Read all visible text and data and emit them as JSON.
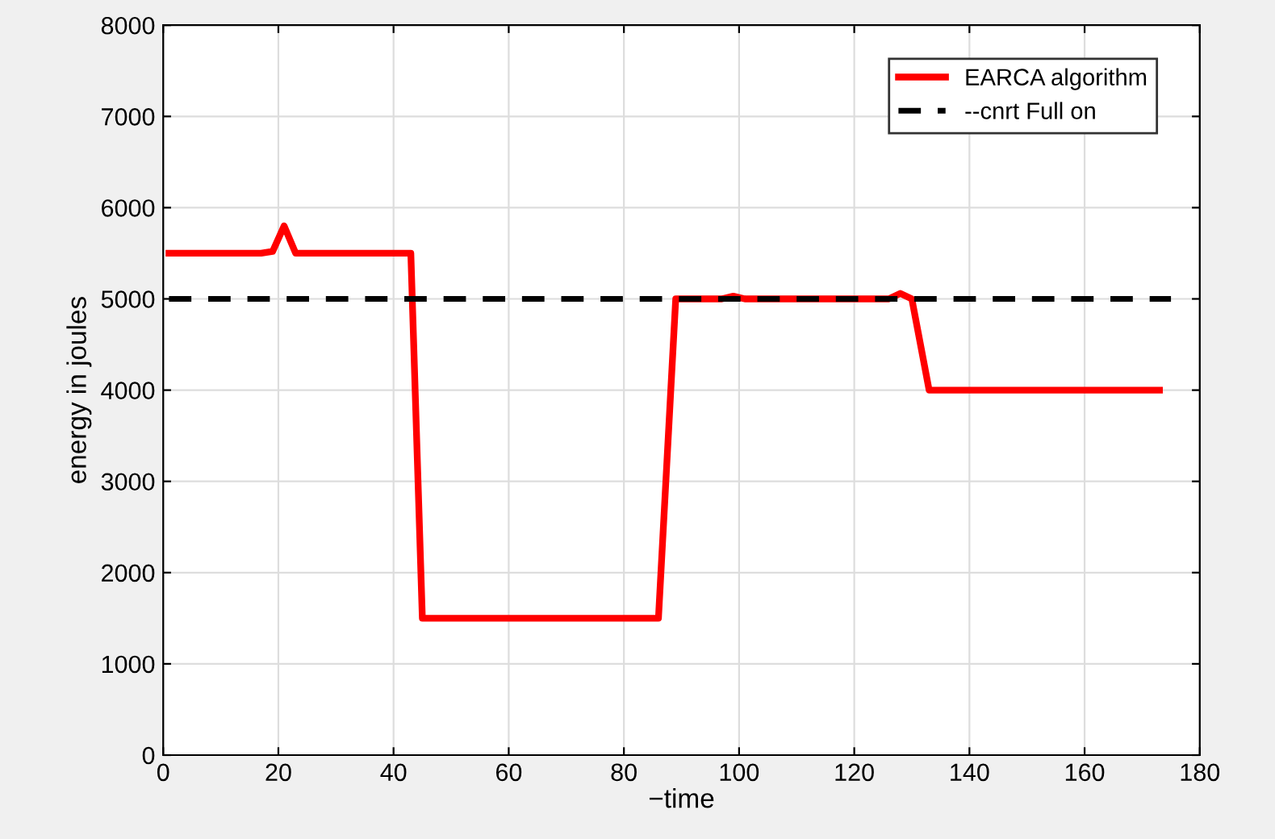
{
  "chart_data": {
    "type": "line",
    "xlabel": "−time",
    "ylabel": "energy in joules",
    "xlim": [
      0,
      180
    ],
    "xticks": [
      0,
      20,
      40,
      60,
      80,
      100,
      120,
      140,
      160,
      180
    ],
    "ylim": [
      0,
      8000
    ],
    "yticks": [
      0,
      1000,
      2000,
      3000,
      4000,
      5000,
      6000,
      7000,
      8000
    ],
    "grid": true,
    "legend": "top right",
    "marker": "none",
    "series": [
      {
        "name": "EARCA algorithm",
        "color": "#ff0000",
        "line_style": "solid",
        "x": [
          1,
          17,
          19,
          21,
          23,
          42,
          43,
          45,
          86,
          89,
          97,
          99,
          101,
          126,
          128,
          130,
          133,
          173
        ],
        "values": [
          5500,
          5500,
          5520,
          5800,
          5500,
          5500,
          5500,
          1500,
          1500,
          5000,
          5000,
          5030,
          5000,
          5000,
          5060,
          5000,
          4000,
          4000
        ]
      },
      {
        "name": "--cnrt Full on",
        "color": "#000000",
        "line_style": "dashed",
        "x": [
          1,
          175
        ],
        "values": [
          5000,
          5000
        ]
      }
    ]
  }
}
